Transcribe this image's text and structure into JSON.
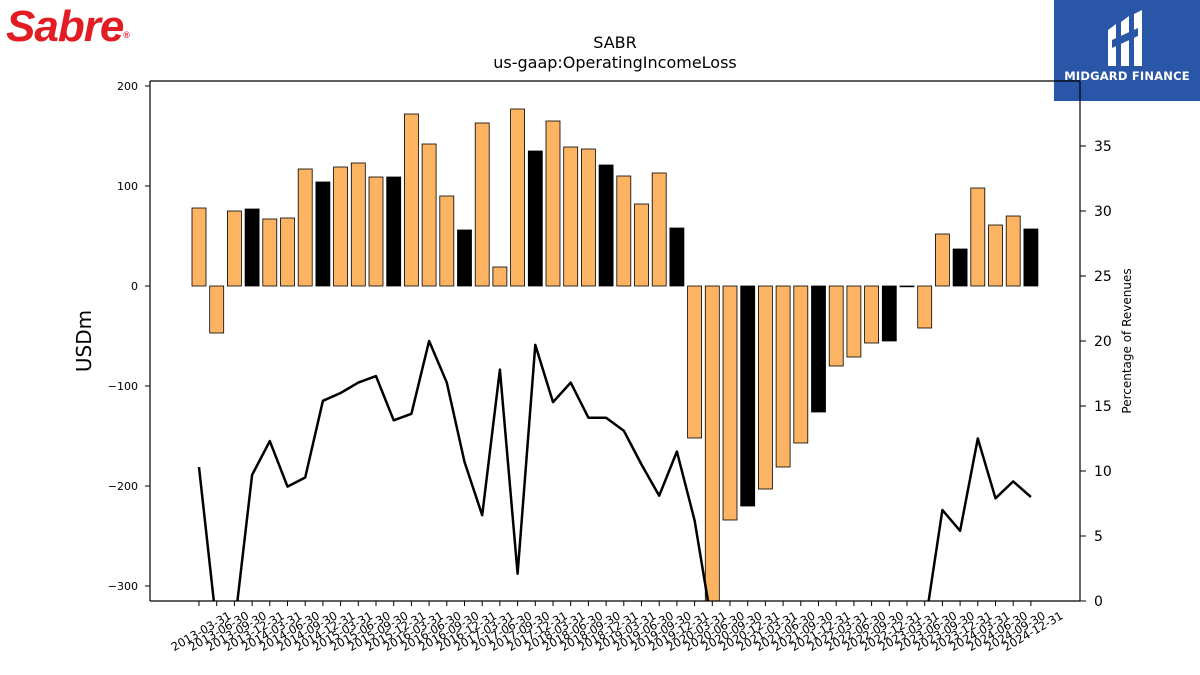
{
  "logos": {
    "left_text": "Sabre",
    "left_reg": "®",
    "right_text": "MIDGARD FINANCE"
  },
  "chart_data": {
    "type": "bar",
    "title": "SABR",
    "subtitle": "us-gaap:OperatingIncomeLoss",
    "ylabel": "USDm",
    "y2label": "Percentage of Revenues",
    "ylim": [
      -315,
      205
    ],
    "y2lim": [
      0,
      40
    ],
    "yticks": [
      200,
      100,
      0,
      -100,
      -200,
      -300
    ],
    "y2ticks": [
      35,
      30,
      25,
      20,
      15,
      10,
      5,
      0
    ],
    "colors": {
      "bar": "#fdb462",
      "q4_bar": "#000000",
      "line": "#000000"
    },
    "categories": [
      "2013-03-31",
      "2013-06-30",
      "2013-09-30",
      "2013-12-31",
      "2014-03-31",
      "2014-06-30",
      "2014-09-30",
      "2014-12-31",
      "2015-03-31",
      "2015-06-30",
      "2015-09-30",
      "2015-12-31",
      "2016-03-31",
      "2016-06-30",
      "2016-09-30",
      "2016-12-31",
      "2017-03-31",
      "2017-06-30",
      "2017-09-30",
      "2017-12-31",
      "2018-03-31",
      "2018-06-30",
      "2018-09-30",
      "2018-12-31",
      "2019-03-31",
      "2019-06-30",
      "2019-09-30",
      "2019-12-31",
      "2020-03-31",
      "2020-06-30",
      "2020-09-30",
      "2020-12-31",
      "2021-03-31",
      "2021-06-30",
      "2021-09-30",
      "2021-12-31",
      "2022-03-31",
      "2022-06-30",
      "2022-09-30",
      "2022-12-31",
      "2023-03-31",
      "2023-06-30",
      "2023-09-30",
      "2023-12-31",
      "2024-03-31",
      "2024-06-30",
      "2024-09-30",
      "2024-12-31"
    ],
    "xticklabels": [
      "2013-03-31",
      "2013-06-30",
      "2013-09-30",
      "2013-12-31",
      "2014-03-31",
      "2014-06-30",
      "2014-09-30",
      "2014-12-31",
      "2015-03-31",
      "2015-06-30",
      "2015-09-30",
      "2015-12-31",
      "2016-03-31",
      "2016-06-30",
      "2016-09-30",
      "2016-12-31",
      "2017-03-31",
      "2017-06-30",
      "2017-09-30",
      "2017-12-31",
      "2018-03-31",
      "2018-06-30",
      "2018-09-30",
      "2018-12-31",
      "2019-03-31",
      "2019-06-30",
      "2019-09-30",
      "2019-12-31",
      "2020-03-31",
      "2020-06-30",
      "2020-09-30",
      "2020-12-31",
      "2021-03-31",
      "2021-06-30",
      "2021-09-30",
      "2021-12-31",
      "2022-03-31",
      "2022-06-30",
      "2022-09-30",
      "2022-12-31",
      "2023-03-31",
      "2023-06-30",
      "2023-09-30",
      "2023-12-31",
      "2024-03-31",
      "2024-06-30",
      "2024-09-30",
      "2024-12-31"
    ],
    "series": [
      {
        "values": [
          78,
          -47,
          75,
          77,
          67,
          68,
          117,
          104,
          119,
          123,
          109,
          109,
          172,
          142,
          90,
          56,
          163,
          19,
          177,
          135,
          165,
          139,
          137,
          121,
          110,
          82,
          113,
          58,
          -152,
          -315,
          -234,
          -220,
          -203,
          -181,
          -157,
          -126,
          -80,
          -71,
          -57,
          -55,
          0,
          -42,
          52,
          37,
          98,
          61,
          70,
          57
        ]
      },
      {
        "axis": "right",
        "values": [
          10.3,
          -2,
          -2,
          9.7,
          12.3,
          8.8,
          9.5,
          15.4,
          16.0,
          16.8,
          17.3,
          13.9,
          14.4,
          20.0,
          16.8,
          10.7,
          6.6,
          17.8,
          2.1,
          19.7,
          15.3,
          16.8,
          14.1,
          14.1,
          13.1,
          10.5,
          8.1,
          11.5,
          6.2,
          -2,
          -2,
          -2,
          -2,
          -2,
          -2,
          -2,
          -2,
          -2,
          -2,
          -2,
          -2,
          -2,
          7.0,
          5.4,
          12.5,
          7.9,
          9.2,
          8.0
        ]
      }
    ]
  }
}
